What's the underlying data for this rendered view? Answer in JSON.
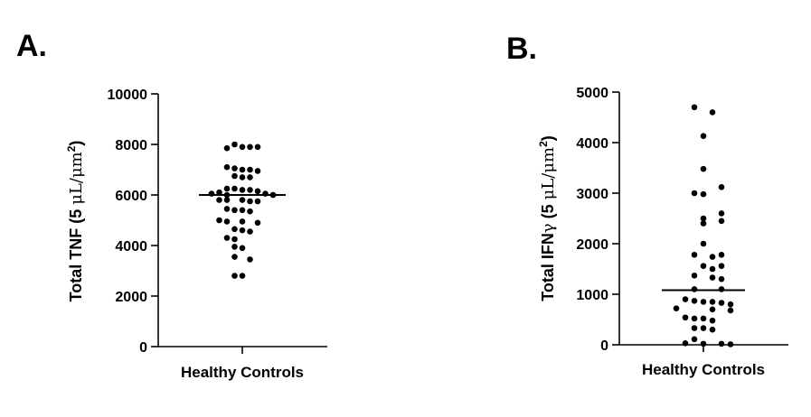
{
  "panels": [
    {
      "letter": "A."
    },
    {
      "letter": "B."
    }
  ],
  "chart_data": [
    {
      "type": "scatter",
      "title": "",
      "xlabel": "",
      "ylabel_parts": {
        "prefix": "Total TNF (5 ",
        "greek": "μL/μm",
        "sup": "2",
        "suffix": ")"
      },
      "category": "Healthy Controls",
      "ylim": [
        0,
        10000
      ],
      "yticks": [
        0,
        2000,
        4000,
        6000,
        8000,
        10000
      ],
      "median": 6000,
      "points": [
        {
          "y": 8000,
          "j": -1
        },
        {
          "y": 7900,
          "j": 0
        },
        {
          "y": 7900,
          "j": 1
        },
        {
          "y": 7850,
          "j": -2
        },
        {
          "y": 7900,
          "j": 2
        },
        {
          "y": 7100,
          "j": -2
        },
        {
          "y": 7050,
          "j": -1
        },
        {
          "y": 7000,
          "j": 0
        },
        {
          "y": 7000,
          "j": 1
        },
        {
          "y": 6950,
          "j": 2
        },
        {
          "y": 6750,
          "j": -1
        },
        {
          "y": 6700,
          "j": 0
        },
        {
          "y": 6700,
          "j": 1
        },
        {
          "y": 6250,
          "j": -2
        },
        {
          "y": 6250,
          "j": -1
        },
        {
          "y": 6200,
          "j": 0
        },
        {
          "y": 6200,
          "j": 1
        },
        {
          "y": 6150,
          "j": 2
        },
        {
          "y": 6100,
          "j": -3
        },
        {
          "y": 6050,
          "j": -4
        },
        {
          "y": 6050,
          "j": 3
        },
        {
          "y": 6000,
          "j": -2
        },
        {
          "y": 6000,
          "j": 4
        },
        {
          "y": 5800,
          "j": -3
        },
        {
          "y": 5800,
          "j": -2
        },
        {
          "y": 5800,
          "j": 0
        },
        {
          "y": 5750,
          "j": 1
        },
        {
          "y": 5750,
          "j": 2
        },
        {
          "y": 5450,
          "j": -2
        },
        {
          "y": 5400,
          "j": -1
        },
        {
          "y": 5400,
          "j": 0
        },
        {
          "y": 5350,
          "j": 1
        },
        {
          "y": 5000,
          "j": -3
        },
        {
          "y": 4950,
          "j": -2
        },
        {
          "y": 4950,
          "j": 0
        },
        {
          "y": 4900,
          "j": 2
        },
        {
          "y": 4650,
          "j": -1
        },
        {
          "y": 4600,
          "j": 0
        },
        {
          "y": 4550,
          "j": 1
        },
        {
          "y": 4300,
          "j": -2
        },
        {
          "y": 4250,
          "j": -1
        },
        {
          "y": 3950,
          "j": -1
        },
        {
          "y": 3900,
          "j": 0
        },
        {
          "y": 3550,
          "j": -1
        },
        {
          "y": 3450,
          "j": 1
        },
        {
          "y": 2800,
          "j": -1
        },
        {
          "y": 2800,
          "j": 0
        }
      ]
    },
    {
      "type": "scatter",
      "title": "",
      "xlabel": "",
      "ylabel_parts": {
        "prefix": "Total IFN",
        "greek_gamma": "γ",
        "mid": " (5 ",
        "greek": "μL/μm",
        "sup": "2",
        "suffix": ")"
      },
      "category": "Healthy Controls",
      "ylim": [
        0,
        5000
      ],
      "yticks": [
        0,
        1000,
        2000,
        3000,
        4000,
        5000
      ],
      "median": 1080,
      "points": [
        {
          "y": 4700,
          "j": -1
        },
        {
          "y": 4600,
          "j": 1
        },
        {
          "y": 4130,
          "j": 0
        },
        {
          "y": 3480,
          "j": 0
        },
        {
          "y": 3120,
          "j": 2
        },
        {
          "y": 3000,
          "j": -1
        },
        {
          "y": 2980,
          "j": 0
        },
        {
          "y": 2600,
          "j": 2
        },
        {
          "y": 2500,
          "j": 0
        },
        {
          "y": 2450,
          "j": 2
        },
        {
          "y": 2400,
          "j": 0
        },
        {
          "y": 2000,
          "j": 0
        },
        {
          "y": 1780,
          "j": -1
        },
        {
          "y": 1780,
          "j": 2
        },
        {
          "y": 1740,
          "j": 1
        },
        {
          "y": 1560,
          "j": 0
        },
        {
          "y": 1560,
          "j": 2
        },
        {
          "y": 1500,
          "j": 1
        },
        {
          "y": 1370,
          "j": -1
        },
        {
          "y": 1330,
          "j": 1
        },
        {
          "y": 1300,
          "j": 2
        },
        {
          "y": 1100,
          "j": -1
        },
        {
          "y": 1100,
          "j": 2
        },
        {
          "y": 900,
          "j": -2
        },
        {
          "y": 870,
          "j": -1
        },
        {
          "y": 850,
          "j": 0
        },
        {
          "y": 850,
          "j": 1
        },
        {
          "y": 830,
          "j": 2
        },
        {
          "y": 800,
          "j": 3
        },
        {
          "y": 720,
          "j": -3
        },
        {
          "y": 700,
          "j": 1
        },
        {
          "y": 680,
          "j": 3
        },
        {
          "y": 540,
          "j": -2
        },
        {
          "y": 520,
          "j": -1
        },
        {
          "y": 520,
          "j": 0
        },
        {
          "y": 480,
          "j": 1
        },
        {
          "y": 330,
          "j": -1
        },
        {
          "y": 330,
          "j": 0
        },
        {
          "y": 300,
          "j": 1
        },
        {
          "y": 110,
          "j": -1
        },
        {
          "y": 30,
          "j": -2
        },
        {
          "y": 20,
          "j": 0
        },
        {
          "y": 20,
          "j": 2
        },
        {
          "y": 10,
          "j": 3
        }
      ]
    }
  ]
}
